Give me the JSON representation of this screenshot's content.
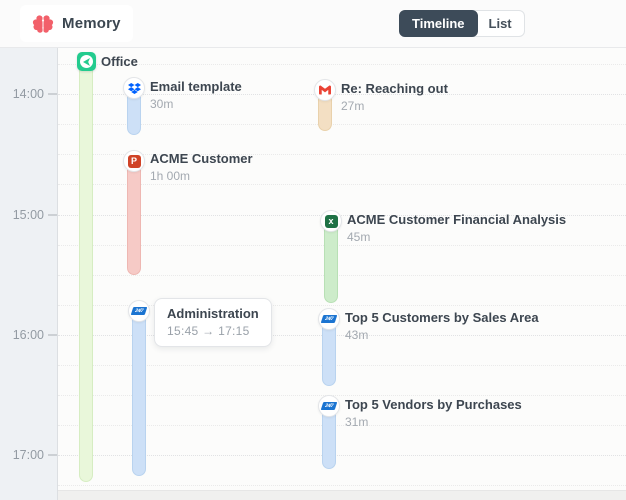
{
  "app": {
    "title": "Memory",
    "logo_icon": "brain-icon"
  },
  "header": {
    "view_toggle": [
      {
        "label": "Timeline",
        "active": true
      },
      {
        "label": "List",
        "active": false
      }
    ]
  },
  "colors": {
    "brand_pink": "#f2606a",
    "toggle_dark": "#3d4b59",
    "office_green": "#23cb8e",
    "dropbox_blue": "#0062ff",
    "gmail_red": "#ea4335",
    "powerpoint_red": "#d04327",
    "excel_green": "#1e7145",
    "erp_blue": "#1b74d1"
  },
  "icon_glyphs": {
    "powerpoint": "P",
    "excel": "x",
    "erp": "24/7"
  },
  "timeline": {
    "hours": [
      "14:00",
      "15:00",
      "16:00",
      "17:00"
    ],
    "location": {
      "title": "Office",
      "icon": "location-arrow-icon",
      "bar_color": "#e9f7da",
      "bar_border": "#d6edc2"
    },
    "entries": [
      {
        "title": "Email template",
        "duration": "30m",
        "icon": "dropbox-icon",
        "bar_color": "#cde0f7",
        "bar_border": "#b9d3ef"
      },
      {
        "title": "Re: Reaching out",
        "duration": "27m",
        "icon": "gmail-icon",
        "bar_color": "#f3dfc3",
        "bar_border": "#e9d1ab"
      },
      {
        "title": "ACME Customer",
        "duration": "1h 00m",
        "icon": "powerpoint-icon",
        "bar_color": "#f6cac6",
        "bar_border": "#eeb7b2"
      },
      {
        "title": "ACME Customer Financial Analysis",
        "duration": "45m",
        "icon": "excel-icon",
        "bar_color": "#cdecca",
        "bar_border": "#b8e0b5"
      },
      {
        "title": "Administration",
        "icon": "erp-icon",
        "bar_color": "#cde0f7",
        "bar_border": "#b9d3ef",
        "tooltip": {
          "title": "Administration",
          "range": "15:45 → 17:15"
        }
      },
      {
        "title": "Top 5 Customers by Sales Area",
        "duration": "43m",
        "icon": "erp-icon",
        "bar_color": "#cde0f7",
        "bar_border": "#b9d3ef"
      },
      {
        "title": "Top 5 Vendors by Purchases",
        "duration": "31m",
        "icon": "erp-icon",
        "bar_color": "#cde0f7",
        "bar_border": "#b9d3ef"
      }
    ]
  }
}
